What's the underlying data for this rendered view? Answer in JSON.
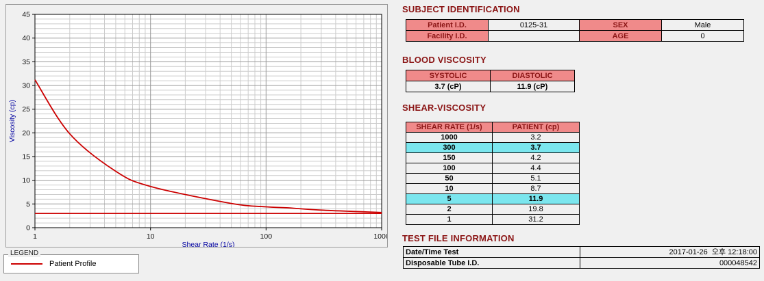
{
  "colors": {
    "heading": "#8b1515",
    "table_header_bg": "#f08a8a",
    "highlight_bg": "#7be6ee",
    "line": "#cc0000",
    "axis_label": "#0000a0",
    "grid_minor": "#cccccc",
    "grid_major": "#999999"
  },
  "chart_data": {
    "type": "line",
    "title": "",
    "xlabel": "Shear Rate (1/s)",
    "ylabel": "Viscosity (cp)",
    "x_scale": "log",
    "xlim": [
      1,
      1000
    ],
    "ylim": [
      0,
      45
    ],
    "x_ticks": [
      1,
      10,
      100,
      1000
    ],
    "y_ticks": [
      0,
      5,
      10,
      15,
      20,
      25,
      30,
      35,
      40,
      45
    ],
    "grid": true,
    "series": [
      {
        "name": "Patient Profile",
        "color": "#cc0000",
        "x": [
          1,
          2,
          5,
          10,
          50,
          100,
          150,
          300,
          1000
        ],
        "y": [
          31.2,
          19.8,
          11.9,
          8.7,
          5.1,
          4.4,
          4.2,
          3.7,
          3.2
        ]
      }
    ],
    "reference_line": {
      "y": 3.0,
      "color": "#cc0000"
    }
  },
  "legend": {
    "title": "LEGEND",
    "items": [
      {
        "label": "Patient Profile",
        "color": "#cc0000"
      }
    ]
  },
  "subject": {
    "heading": "SUBJECT IDENTIFICATION",
    "rows": [
      {
        "label1": "Patient I.D.",
        "value1": "0125-31",
        "label2": "SEX",
        "value2": "Male"
      },
      {
        "label1": "Facility I.D.",
        "value1": "",
        "label2": "AGE",
        "value2": "0"
      }
    ]
  },
  "blood_viscosity": {
    "heading": "BLOOD VISCOSITY",
    "headers": [
      "SYSTOLIC",
      "DIASTOLIC"
    ],
    "values": [
      "3.7 (cP)",
      "11.9 (cP)"
    ]
  },
  "shear_viscosity": {
    "heading": "SHEAR-VISCOSITY",
    "headers": [
      "SHEAR RATE (1/s)",
      "PATIENT (cp)"
    ],
    "rows": [
      {
        "rate": "1000",
        "value": "3.2",
        "highlight": false
      },
      {
        "rate": "300",
        "value": "3.7",
        "highlight": true
      },
      {
        "rate": "150",
        "value": "4.2",
        "highlight": false
      },
      {
        "rate": "100",
        "value": "4.4",
        "highlight": false
      },
      {
        "rate": "50",
        "value": "5.1",
        "highlight": false
      },
      {
        "rate": "10",
        "value": "8.7",
        "highlight": false
      },
      {
        "rate": "5",
        "value": "11.9",
        "highlight": true
      },
      {
        "rate": "2",
        "value": "19.8",
        "highlight": false
      },
      {
        "rate": "1",
        "value": "31.2",
        "highlight": false
      }
    ]
  },
  "test_file": {
    "heading": "TEST FILE INFORMATION",
    "rows": [
      {
        "label": "Date/Time Test",
        "value": "2017-01-26  오후 12:18:00"
      },
      {
        "label": "Disposable Tube I.D.",
        "value": "000048542"
      }
    ]
  }
}
